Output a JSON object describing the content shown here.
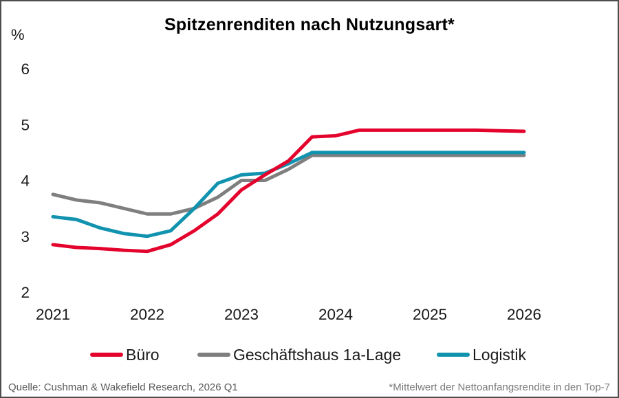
{
  "chart_data": {
    "type": "line",
    "title": "Spitzenrenditen nach Nutzungsart*",
    "unit_label": "%",
    "x_labels": [
      "2021",
      "2022",
      "2023",
      "2024",
      "2025",
      "2026"
    ],
    "x_frequency": "quarterly",
    "x_range": "2021 Q1 to 2026 Q1",
    "y_ticks": [
      2,
      3,
      4,
      5,
      6
    ],
    "ylim": [
      2,
      6
    ],
    "grid": false,
    "legend_position": "bottom",
    "series": [
      {
        "id": "buero",
        "name": "Büro",
        "color": "#E4032D",
        "draw_order": 3,
        "values": [
          2.85,
          2.8,
          2.78,
          2.75,
          2.73,
          2.85,
          3.1,
          3.4,
          3.83,
          4.1,
          4.35,
          4.78,
          4.8,
          4.9,
          4.9,
          4.9,
          4.9,
          4.9,
          4.9,
          4.89,
          4.88
        ]
      },
      {
        "id": "geschaeftshaus-1a-lage",
        "name": "Geschäftshaus 1a-Lage",
        "color": "#7F7F7F",
        "draw_order": 1,
        "values": [
          3.75,
          3.65,
          3.6,
          3.5,
          3.4,
          3.4,
          3.5,
          3.7,
          4.0,
          4.0,
          4.2,
          4.45,
          4.45,
          4.45,
          4.45,
          4.45,
          4.45,
          4.45,
          4.45,
          4.45,
          4.45
        ]
      },
      {
        "id": "logistik",
        "name": "Logistik",
        "color": "#1193AF",
        "draw_order": 2,
        "values": [
          3.35,
          3.3,
          3.15,
          3.05,
          3.0,
          3.1,
          3.5,
          3.95,
          4.1,
          4.13,
          4.3,
          4.5,
          4.5,
          4.5,
          4.5,
          4.5,
          4.5,
          4.5,
          4.5,
          4.5,
          4.5
        ]
      }
    ]
  },
  "footer": {
    "source": "Quelle: Cushman & Wakefield Research, 2026 Q1",
    "footnote": "*Mittelwert der Nettoanfangsrendite in den Top-7"
  }
}
